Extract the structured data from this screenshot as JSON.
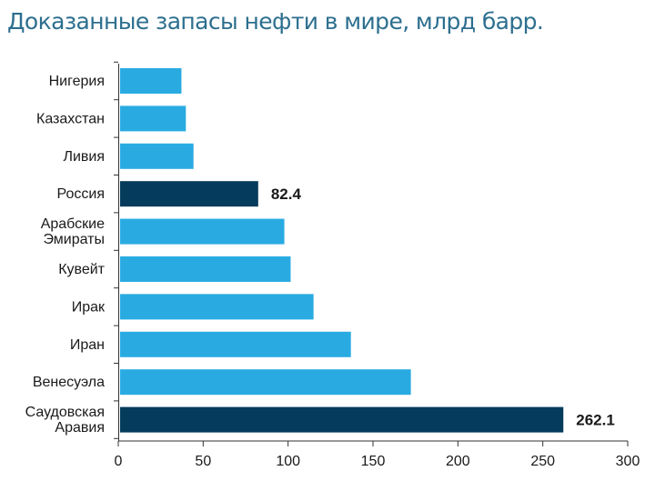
{
  "chart_data": {
    "type": "bar",
    "orientation": "horizontal",
    "title": "Доказанные запасы нефти в мире, млрд барр.",
    "categories": [
      [
        "Нигерия"
      ],
      [
        "Казахстан"
      ],
      [
        "Ливия"
      ],
      [
        "Россия"
      ],
      [
        "Арабские",
        "Эмираты"
      ],
      [
        "Кувейт"
      ],
      [
        "Ирак"
      ],
      [
        "Иран"
      ],
      [
        "Венесуэла"
      ],
      [
        "Саудовская",
        "Аравия"
      ]
    ],
    "values": [
      37.2,
      39.8,
      44.3,
      82.4,
      97.8,
      101.5,
      115.0,
      137.0,
      172.3,
      262.1
    ],
    "highlighted": [
      false,
      false,
      false,
      true,
      false,
      false,
      false,
      false,
      false,
      true
    ],
    "data_labels": [
      "",
      "",
      "",
      "82.4",
      "",
      "",
      "",
      "",
      "",
      "262.1"
    ],
    "xlim": [
      0,
      300
    ],
    "xticks": [
      0,
      50,
      100,
      150,
      200,
      250,
      300
    ],
    "colors": {
      "bar": "#29abe2",
      "highlight": "#053b5c",
      "title": "#2d6f8f",
      "axis": "#333333"
    }
  }
}
